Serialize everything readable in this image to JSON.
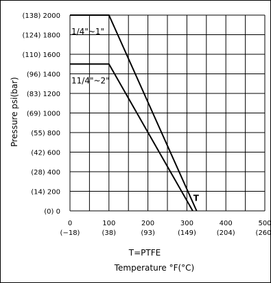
{
  "chart_data": {
    "type": "line",
    "ylabel": "Pressure  psi(bar)",
    "xlabel": "Temperature  °F(°C)",
    "subtitle": "T=PTFE",
    "xlim": [
      0,
      500
    ],
    "ylim": [
      0,
      2000
    ],
    "grid": true,
    "x_ticks": [
      {
        "value": 0,
        "f": "0",
        "c": "(−18)"
      },
      {
        "value": 100,
        "f": "100",
        "c": "(38)"
      },
      {
        "value": 200,
        "f": "200",
        "c": "(93)"
      },
      {
        "value": 300,
        "f": "300",
        "c": "(149)"
      },
      {
        "value": 400,
        "f": "400",
        "c": "(204)"
      },
      {
        "value": 500,
        "f": "500",
        "c": "(260)"
      }
    ],
    "y_ticks": [
      {
        "value": 0,
        "label": "(0)   0"
      },
      {
        "value": 200,
        "label": "(14) 200"
      },
      {
        "value": 400,
        "label": "(28) 400"
      },
      {
        "value": 600,
        "label": "(42) 600"
      },
      {
        "value": 800,
        "label": "(55) 800"
      },
      {
        "value": 1000,
        "label": "(69) 1000"
      },
      {
        "value": 1200,
        "label": "(83) 1200"
      },
      {
        "value": 1400,
        "label": "(96) 1400"
      },
      {
        "value": 1600,
        "label": "(110) 1600"
      },
      {
        "value": 1800,
        "label": "(124) 1800"
      },
      {
        "value": 2000,
        "label": "(138) 2000"
      }
    ],
    "series": [
      {
        "name": "1/4\"~1\"",
        "points": [
          [
            0,
            2000
          ],
          [
            100,
            2000
          ],
          [
            325,
            0
          ]
        ]
      },
      {
        "name": "11/4\"~2\"",
        "points": [
          [
            0,
            1500
          ],
          [
            100,
            1500
          ],
          [
            315,
            0
          ]
        ]
      }
    ],
    "annotation": {
      "text": "T",
      "x": 320,
      "y": 75
    }
  }
}
